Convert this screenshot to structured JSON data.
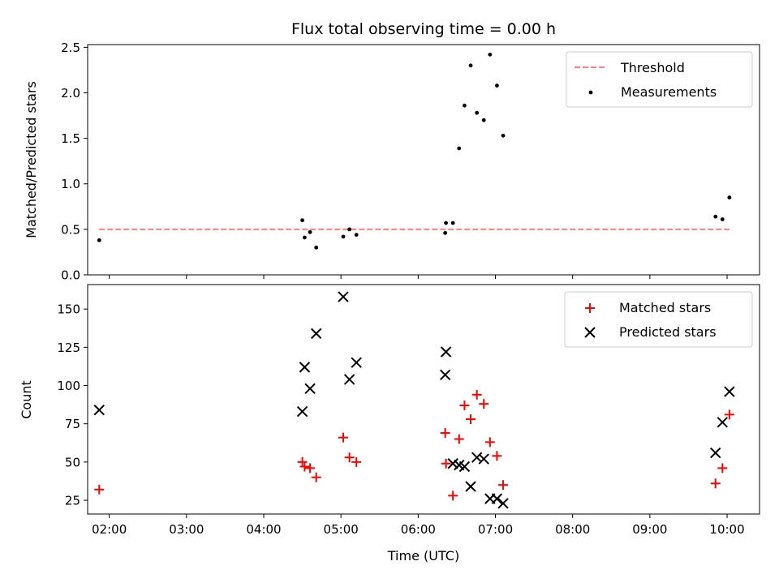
{
  "chart_data": {
    "title": "Flux total observing time = 0.00 h",
    "xlabel": "Time (UTC)",
    "xlim": [
      1.72,
      10.42
    ],
    "xticks": [
      {
        "value": 2,
        "label": "02:00"
      },
      {
        "value": 3,
        "label": "03:00"
      },
      {
        "value": 4,
        "label": "04:00"
      },
      {
        "value": 5,
        "label": "05:00"
      },
      {
        "value": 6,
        "label": "06:00"
      },
      {
        "value": 7,
        "label": "07:00"
      },
      {
        "value": 8,
        "label": "08:00"
      },
      {
        "value": 9,
        "label": "09:00"
      },
      {
        "value": 10,
        "label": "10:00"
      }
    ],
    "panels": [
      {
        "type": "scatter",
        "ylabel": "Matched/Predicted stars",
        "ylim": [
          0,
          2.53
        ],
        "yticks": [
          {
            "value": 0,
            "label": "0.0"
          },
          {
            "value": 0.5,
            "label": "0.5"
          },
          {
            "value": 1.0,
            "label": "1.0"
          },
          {
            "value": 1.5,
            "label": "1.5"
          },
          {
            "value": 2.0,
            "label": "2.0"
          },
          {
            "value": 2.5,
            "label": "2.5"
          }
        ],
        "threshold": {
          "name": "Threshold",
          "value": 0.5,
          "x_range": [
            1.87,
            10.03
          ],
          "color": "#ff7f7f"
        },
        "series": [
          {
            "name": "Measurements",
            "marker": "dot",
            "color": "#000000",
            "x": [
              1.87,
              4.5,
              4.53,
              4.6,
              4.68,
              5.03,
              5.11,
              5.2,
              6.35,
              6.36,
              6.45,
              6.53,
              6.6,
              6.68,
              6.76,
              6.85,
              6.93,
              7.02,
              7.1,
              9.85,
              9.94,
              10.03
            ],
            "y": [
              0.38,
              0.6,
              0.41,
              0.47,
              0.3,
              0.42,
              0.5,
              0.44,
              0.46,
              0.57,
              0.57,
              1.39,
              1.86,
              2.3,
              1.78,
              1.7,
              2.42,
              2.08,
              1.53,
              0.64,
              0.61,
              0.85
            ]
          }
        ],
        "legend_position": "top-right"
      },
      {
        "type": "scatter",
        "ylabel": "Count",
        "ylim": [
          16,
          166
        ],
        "yticks": [
          {
            "value": 25,
            "label": "25"
          },
          {
            "value": 50,
            "label": "50"
          },
          {
            "value": 75,
            "label": "75"
          },
          {
            "value": 100,
            "label": "100"
          },
          {
            "value": 125,
            "label": "125"
          },
          {
            "value": 150,
            "label": "150"
          }
        ],
        "series": [
          {
            "name": "Matched stars",
            "marker": "plus",
            "color": "#ff0000",
            "x": [
              1.87,
              4.5,
              4.53,
              4.6,
              4.68,
              5.03,
              5.11,
              5.2,
              6.35,
              6.36,
              6.45,
              6.53,
              6.6,
              6.68,
              6.76,
              6.85,
              6.93,
              7.02,
              7.1,
              9.85,
              9.94,
              10.03
            ],
            "y": [
              32,
              50,
              47,
              46,
              40,
              66,
              53,
              50,
              69,
              49,
              28,
              65,
              87,
              78,
              94,
              88,
              63,
              54,
              35,
              36,
              46,
              81
            ]
          },
          {
            "name": "Predicted stars",
            "marker": "cross",
            "color": "#000000",
            "x": [
              1.87,
              4.5,
              4.53,
              4.6,
              4.68,
              5.03,
              5.11,
              5.2,
              6.35,
              6.36,
              6.45,
              6.53,
              6.6,
              6.68,
              6.76,
              6.85,
              6.93,
              7.02,
              7.1,
              9.85,
              9.94,
              10.03
            ],
            "y": [
              84,
              83,
              112,
              98,
              134,
              158,
              104,
              115,
              107,
              122,
              49,
              48,
              47,
              34,
              53,
              52,
              26,
              26,
              23,
              56,
              76,
              96
            ]
          }
        ],
        "legend_position": "top-right"
      }
    ]
  }
}
